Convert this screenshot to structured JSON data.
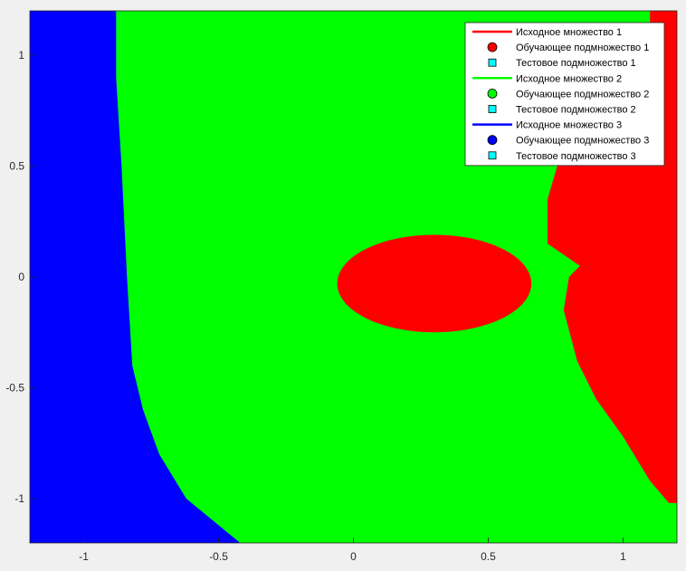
{
  "chart_data": {
    "type": "decision-region-map",
    "xlim": [
      -1.2,
      1.2
    ],
    "ylim": [
      -1.2,
      1.2
    ],
    "x_ticks": [
      -1,
      -0.5,
      0,
      0.5,
      1
    ],
    "y_ticks": [
      1,
      0.5,
      0,
      -0.5,
      -1
    ],
    "x_tick_labels": [
      "-1",
      "-0.5",
      "0",
      "0.5",
      "1"
    ],
    "y_tick_labels": [
      "1",
      "0.5",
      "0",
      "-0.5",
      "-1"
    ],
    "grid": false,
    "legend_position": "top-right",
    "regions": [
      {
        "class": 3,
        "color": "#0000ff",
        "description": "left region",
        "boundary": [
          [
            -1.2,
            1.2
          ],
          [
            -0.88,
            1.2
          ],
          [
            -0.88,
            0.9
          ],
          [
            -0.86,
            0.5
          ],
          [
            -0.84,
            0.0
          ],
          [
            -0.82,
            -0.4
          ],
          [
            -0.78,
            -0.6
          ],
          [
            -0.72,
            -0.8
          ],
          [
            -0.62,
            -1.0
          ],
          [
            -0.52,
            -1.1
          ],
          [
            -0.42,
            -1.2
          ],
          [
            -1.2,
            -1.2
          ]
        ]
      },
      {
        "class": 2,
        "color": "#00ff00",
        "description": "background region"
      },
      {
        "class": 1,
        "color": "#ff0000",
        "description": "central ellipse",
        "center": [
          0.3,
          -0.03
        ],
        "radii": [
          0.36,
          0.22
        ]
      },
      {
        "class": 1,
        "color": "#ff0000",
        "description": "right region",
        "boundary": [
          [
            1.1,
            1.2
          ],
          [
            1.2,
            1.2
          ],
          [
            1.2,
            -1.02
          ],
          [
            1.17,
            -1.02
          ],
          [
            1.1,
            -0.92
          ],
          [
            1.0,
            -0.72
          ],
          [
            0.9,
            -0.55
          ],
          [
            0.83,
            -0.38
          ],
          [
            0.78,
            -0.15
          ],
          [
            0.8,
            0.0
          ],
          [
            0.84,
            0.05
          ],
          [
            0.72,
            0.15
          ],
          [
            0.72,
            0.35
          ],
          [
            0.78,
            0.6
          ],
          [
            0.9,
            0.8
          ],
          [
            1.0,
            0.95
          ],
          [
            1.1,
            1.05
          ]
        ]
      }
    ],
    "series": [
      {
        "name": "Исходное множество 1",
        "marker": "line",
        "color": "#ff0000"
      },
      {
        "name": "Обучающее подмножество 1",
        "marker": "circle",
        "color": "#ff0000"
      },
      {
        "name": "Тестовое подмножество 1",
        "marker": "square",
        "color": "#00ffff"
      },
      {
        "name": "Исходное множество 2",
        "marker": "line",
        "color": "#00ff00"
      },
      {
        "name": "Обучающее подмножество 2",
        "marker": "circle",
        "color": "#00ff00"
      },
      {
        "name": "Тестовое подмножество 2",
        "marker": "square",
        "color": "#00ffff"
      },
      {
        "name": "Исходное множество 3",
        "marker": "line",
        "color": "#0000ff"
      },
      {
        "name": "Обучающее подмножество 3",
        "marker": "circle",
        "color": "#0000ff"
      },
      {
        "name": "Тестовое подмножество 3",
        "marker": "square",
        "color": "#00ffff"
      }
    ]
  }
}
